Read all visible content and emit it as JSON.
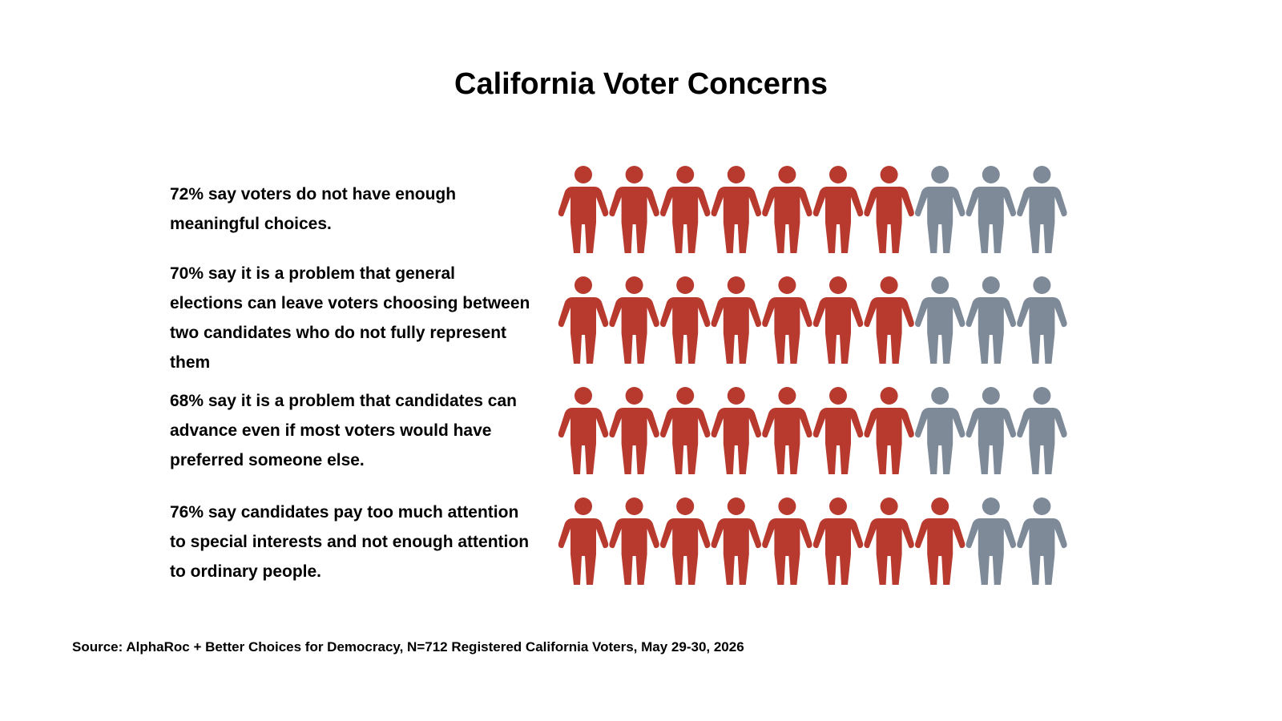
{
  "chart_data": {
    "type": "pictogram",
    "title": "California Voter Concerns",
    "categories": [
      "72% say voters do not have enough meaningful choices.",
      "70% say it is a problem that general elections can leave voters choosing between two candidates who do not fully represent them",
      "68% say it is a problem that candidates can advance even if most voters would have preferred someone else.",
      "76% say candidates pay too much attention to special interests and not enough attention to ordinary people."
    ],
    "values": [
      72,
      70,
      68,
      76
    ],
    "colors": [
      "#b83a2e",
      "#7f8a99"
    ],
    "source": "Source: AlphaRoc + Better Choices for Democracy, N=712 Registered California Voters, May 29-30, 2026"
  }
}
